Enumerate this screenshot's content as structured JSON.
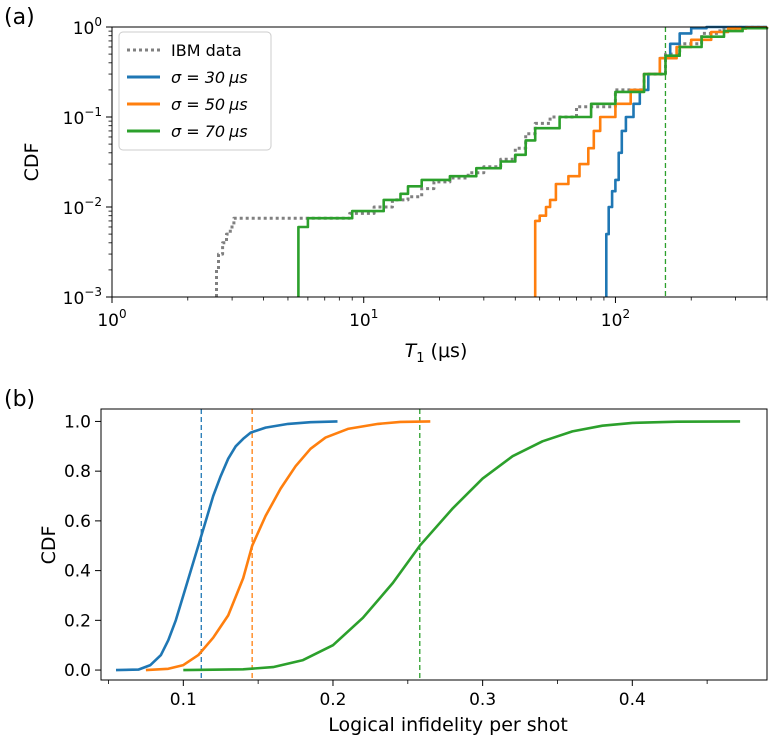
{
  "chart_data": [
    {
      "panel": "(a)",
      "type": "line",
      "title": "",
      "xlabel_main": "T",
      "xlabel_sub": "1",
      "xlabel_unit": " (μs)",
      "ylabel": "CDF",
      "xscale": "log",
      "yscale": "log",
      "xlim": [
        1,
        400
      ],
      "ylim": [
        0.001,
        1
      ],
      "x_ticks": [
        {
          "v": 1,
          "b": "10",
          "e": "0"
        },
        {
          "v": 10,
          "b": "10",
          "e": "1"
        },
        {
          "v": 100,
          "b": "10",
          "e": "2"
        }
      ],
      "y_ticks": [
        {
          "v": 0.001,
          "b": "10",
          "e": "−3"
        },
        {
          "v": 0.01,
          "b": "10",
          "e": "−2"
        },
        {
          "v": 0.1,
          "b": "10",
          "e": "−1"
        },
        {
          "v": 1,
          "b": "10",
          "e": "0"
        }
      ],
      "legend_position": "top-left",
      "vline": {
        "x": 158,
        "color": "#2ca02c"
      },
      "series": [
        {
          "name": "IBM data",
          "color": "#808080",
          "style": "dotted",
          "points": [
            [
              2.6,
              0.001
            ],
            [
              2.6,
              0.002
            ],
            [
              2.65,
              0.003
            ],
            [
              2.75,
              0.004
            ],
            [
              2.85,
              0.005
            ],
            [
              2.95,
              0.006
            ],
            [
              3.05,
              0.0075
            ],
            [
              8.8,
              0.0075
            ],
            [
              8.8,
              0.0085
            ],
            [
              11,
              0.0085
            ],
            [
              11,
              0.01
            ],
            [
              13,
              0.01
            ],
            [
              13,
              0.012
            ],
            [
              15,
              0.013
            ],
            [
              17,
              0.016
            ],
            [
              19,
              0.019
            ],
            [
              22,
              0.021
            ],
            [
              26,
              0.024
            ],
            [
              30,
              0.028
            ],
            [
              35,
              0.034
            ],
            [
              40,
              0.045
            ],
            [
              44,
              0.065
            ],
            [
              48,
              0.085
            ],
            [
              55,
              0.1
            ],
            [
              70,
              0.13
            ],
            [
              100,
              0.2
            ],
            [
              130,
              0.3
            ],
            [
              158,
              0.5
            ],
            [
              180,
              0.65
            ],
            [
              220,
              0.85
            ],
            [
              260,
              0.95
            ],
            [
              300,
              0.99
            ],
            [
              400,
              1
            ]
          ]
        },
        {
          "name": "σ = 30 μs",
          "label_pre": "σ = 30",
          "label_unit": "μs",
          "color": "#1f77b4",
          "style": "solid",
          "points": [
            [
              92,
              0.001
            ],
            [
              92,
              0.005
            ],
            [
              94,
              0.01
            ],
            [
              97,
              0.015
            ],
            [
              100,
              0.02
            ],
            [
              103,
              0.04
            ],
            [
              106,
              0.07
            ],
            [
              110,
              0.1
            ],
            [
              118,
              0.14
            ],
            [
              125,
              0.2
            ],
            [
              135,
              0.3
            ],
            [
              150,
              0.45
            ],
            [
              165,
              0.65
            ],
            [
              180,
              0.85
            ],
            [
              200,
              0.97
            ],
            [
              230,
              1
            ],
            [
              400,
              1
            ]
          ]
        },
        {
          "name": "σ = 50 μs",
          "label_pre": "σ = 50",
          "label_unit": "μs",
          "color": "#ff7f0e",
          "style": "solid",
          "points": [
            [
              48,
              0.001
            ],
            [
              48,
              0.007
            ],
            [
              50,
              0.008
            ],
            [
              53,
              0.01
            ],
            [
              55,
              0.012
            ],
            [
              58,
              0.018
            ],
            [
              65,
              0.022
            ],
            [
              72,
              0.03
            ],
            [
              78,
              0.045
            ],
            [
              82,
              0.07
            ],
            [
              87,
              0.1
            ],
            [
              100,
              0.14
            ],
            [
              115,
              0.2
            ],
            [
              130,
              0.3
            ],
            [
              150,
              0.45
            ],
            [
              175,
              0.6
            ],
            [
              200,
              0.72
            ],
            [
              240,
              0.88
            ],
            [
              280,
              0.96
            ],
            [
              330,
              0.99
            ],
            [
              400,
              1
            ]
          ]
        },
        {
          "name": "σ = 70 μs",
          "label_pre": "σ = 70",
          "label_unit": "μs",
          "color": "#2ca02c",
          "style": "solid",
          "points": [
            [
              5.5,
              0.001
            ],
            [
              5.5,
              0.006
            ],
            [
              6,
              0.0075
            ],
            [
              9,
              0.0075
            ],
            [
              9,
              0.009
            ],
            [
              12,
              0.009
            ],
            [
              12,
              0.012
            ],
            [
              14,
              0.014
            ],
            [
              15,
              0.017
            ],
            [
              17,
              0.02
            ],
            [
              22,
              0.022
            ],
            [
              28,
              0.027
            ],
            [
              35,
              0.032
            ],
            [
              40,
              0.038
            ],
            [
              44,
              0.055
            ],
            [
              48,
              0.075
            ],
            [
              60,
              0.1
            ],
            [
              80,
              0.14
            ],
            [
              100,
              0.19
            ],
            [
              130,
              0.3
            ],
            [
              158,
              0.48
            ],
            [
              180,
              0.6
            ],
            [
              220,
              0.78
            ],
            [
              270,
              0.9
            ],
            [
              320,
              0.97
            ],
            [
              400,
              0.99
            ]
          ]
        }
      ]
    },
    {
      "panel": "(b)",
      "type": "line",
      "title": "",
      "xlabel": "Logical infidelity per shot",
      "ylabel": "CDF",
      "xlim": [
        0.045,
        0.49
      ],
      "ylim": [
        -0.04,
        1.05
      ],
      "x_ticks": [
        {
          "v": 0.1,
          "label": "0.1"
        },
        {
          "v": 0.2,
          "label": "0.2"
        },
        {
          "v": 0.3,
          "label": "0.3"
        },
        {
          "v": 0.4,
          "label": "0.4"
        }
      ],
      "x_minor_ticks": [
        0.05,
        0.15,
        0.25,
        0.35,
        0.45
      ],
      "y_ticks": [
        {
          "v": 0,
          "label": "0.0"
        },
        {
          "v": 0.2,
          "label": "0.2"
        },
        {
          "v": 0.4,
          "label": "0.4"
        },
        {
          "v": 0.6,
          "label": "0.6"
        },
        {
          "v": 0.8,
          "label": "0.8"
        },
        {
          "v": 1.0,
          "label": "1.0"
        }
      ],
      "vlines": [
        {
          "x": 0.112,
          "color": "#1f77b4"
        },
        {
          "x": 0.146,
          "color": "#ff7f0e"
        },
        {
          "x": 0.258,
          "color": "#2ca02c"
        }
      ],
      "series": [
        {
          "name": "σ = 30 μs",
          "color": "#1f77b4",
          "points": [
            [
              0.055,
              0
            ],
            [
              0.07,
              0.002
            ],
            [
              0.078,
              0.02
            ],
            [
              0.085,
              0.06
            ],
            [
              0.09,
              0.12
            ],
            [
              0.095,
              0.2
            ],
            [
              0.1,
              0.3
            ],
            [
              0.105,
              0.4
            ],
            [
              0.11,
              0.5
            ],
            [
              0.115,
              0.6
            ],
            [
              0.12,
              0.7
            ],
            [
              0.125,
              0.78
            ],
            [
              0.13,
              0.85
            ],
            [
              0.135,
              0.9
            ],
            [
              0.14,
              0.93
            ],
            [
              0.145,
              0.955
            ],
            [
              0.155,
              0.975
            ],
            [
              0.17,
              0.99
            ],
            [
              0.185,
              0.997
            ],
            [
              0.203,
              1
            ]
          ]
        },
        {
          "name": "σ = 50 μs",
          "color": "#ff7f0e",
          "points": [
            [
              0.075,
              0
            ],
            [
              0.09,
              0.005
            ],
            [
              0.1,
              0.02
            ],
            [
              0.11,
              0.06
            ],
            [
              0.12,
              0.13
            ],
            [
              0.13,
              0.22
            ],
            [
              0.14,
              0.37
            ],
            [
              0.146,
              0.5
            ],
            [
              0.155,
              0.62
            ],
            [
              0.165,
              0.73
            ],
            [
              0.175,
              0.82
            ],
            [
              0.185,
              0.89
            ],
            [
              0.195,
              0.935
            ],
            [
              0.21,
              0.97
            ],
            [
              0.23,
              0.99
            ],
            [
              0.245,
              0.998
            ],
            [
              0.265,
              1
            ]
          ]
        },
        {
          "name": "σ = 70 μs",
          "color": "#2ca02c",
          "points": [
            [
              0.1,
              0
            ],
            [
              0.14,
              0.003
            ],
            [
              0.16,
              0.012
            ],
            [
              0.18,
              0.04
            ],
            [
              0.2,
              0.1
            ],
            [
              0.22,
              0.21
            ],
            [
              0.24,
              0.35
            ],
            [
              0.258,
              0.5
            ],
            [
              0.28,
              0.65
            ],
            [
              0.3,
              0.77
            ],
            [
              0.32,
              0.86
            ],
            [
              0.34,
              0.92
            ],
            [
              0.36,
              0.96
            ],
            [
              0.38,
              0.983
            ],
            [
              0.4,
              0.994
            ],
            [
              0.43,
              0.999
            ],
            [
              0.472,
              1
            ]
          ]
        }
      ]
    }
  ]
}
